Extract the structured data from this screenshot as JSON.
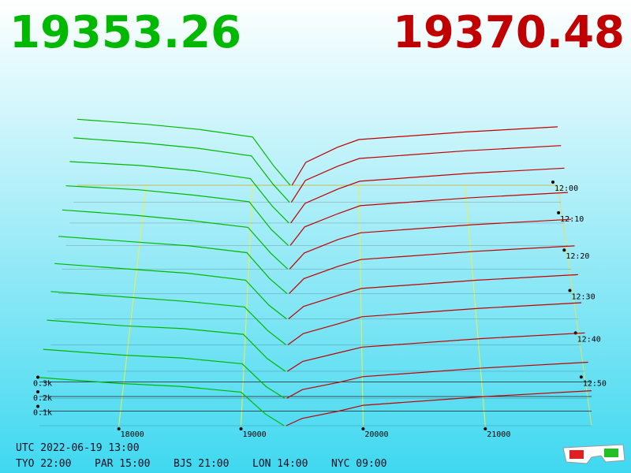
{
  "chart_data": {
    "type": "depth3d",
    "bid_price": 19353.26,
    "ask_price": 19370.48,
    "bid_color": "#00b800",
    "ask_color": "#c00000",
    "xlim": [
      17350,
      21870
    ],
    "xticks": [
      18000,
      19000,
      20000,
      21000
    ],
    "depth_ticks": [
      {
        "value": 0.1,
        "label": "0.1k"
      },
      {
        "value": 0.2,
        "label": "0.2k"
      },
      {
        "value": 0.3,
        "label": "0.3k"
      }
    ],
    "time_ticks": [
      {
        "value": 0,
        "label": "12:00"
      },
      {
        "value": 10,
        "label": "12:10"
      },
      {
        "value": 20,
        "label": "12:20"
      },
      {
        "value": 30,
        "label": "12:30"
      },
      {
        "value": 40,
        "label": "12:40"
      },
      {
        "value": 50,
        "label": "12:50"
      }
    ],
    "bid_prices": [
      17350,
      18000,
      18500,
      19000,
      19200,
      19353
    ],
    "ask_prices": [
      19370,
      19500,
      19800,
      20000,
      21000,
      21870
    ],
    "snapshots": [
      {
        "minute": 0,
        "bids": [
          0.52,
          0.48,
          0.44,
          0.38,
          0.15,
          0
        ],
        "asks": [
          0,
          0.18,
          0.3,
          0.36,
          0.42,
          0.46
        ]
      },
      {
        "minute": 6,
        "bids": [
          0.5,
          0.46,
          0.42,
          0.36,
          0.14,
          0
        ],
        "asks": [
          0,
          0.17,
          0.28,
          0.34,
          0.4,
          0.44
        ]
      },
      {
        "minute": 12,
        "bids": [
          0.47,
          0.44,
          0.4,
          0.34,
          0.13,
          0
        ],
        "asks": [
          0,
          0.15,
          0.26,
          0.32,
          0.38,
          0.42
        ]
      },
      {
        "minute": 18,
        "bids": [
          0.45,
          0.42,
          0.38,
          0.33,
          0.12,
          0
        ],
        "asks": [
          0,
          0.14,
          0.24,
          0.3,
          0.36,
          0.4
        ]
      },
      {
        "minute": 24,
        "bids": [
          0.44,
          0.4,
          0.36,
          0.31,
          0.12,
          0
        ],
        "asks": [
          0,
          0.12,
          0.22,
          0.27,
          0.33,
          0.37
        ]
      },
      {
        "minute": 30,
        "bids": [
          0.42,
          0.38,
          0.35,
          0.3,
          0.11,
          0
        ],
        "asks": [
          0,
          0.11,
          0.2,
          0.25,
          0.31,
          0.35
        ]
      },
      {
        "minute": 36,
        "bids": [
          0.4,
          0.36,
          0.33,
          0.28,
          0.1,
          0
        ],
        "asks": [
          0,
          0.09,
          0.17,
          0.22,
          0.28,
          0.32
        ]
      },
      {
        "minute": 42,
        "bids": [
          0.38,
          0.34,
          0.31,
          0.27,
          0.1,
          0
        ],
        "asks": [
          0,
          0.08,
          0.15,
          0.2,
          0.26,
          0.3
        ]
      },
      {
        "minute": 48,
        "bids": [
          0.36,
          0.32,
          0.3,
          0.26,
          0.09,
          0
        ],
        "asks": [
          0,
          0.07,
          0.13,
          0.17,
          0.23,
          0.27
        ]
      },
      {
        "minute": 54,
        "bids": [
          0.34,
          0.3,
          0.28,
          0.24,
          0.08,
          0
        ],
        "asks": [
          0,
          0.06,
          0.11,
          0.15,
          0.21,
          0.25
        ]
      },
      {
        "minute": 60,
        "bids": [
          0.33,
          0.29,
          0.27,
          0.23,
          0.08,
          0
        ],
        "asks": [
          0,
          0.05,
          0.1,
          0.14,
          0.2,
          0.24
        ]
      }
    ],
    "utc": "UTC 2022-06-19 13:00",
    "clocks": [
      "TYO 22:00",
      "PAR 15:00",
      "BJS 21:00",
      "LON 14:00",
      "NYC 09:00"
    ]
  }
}
